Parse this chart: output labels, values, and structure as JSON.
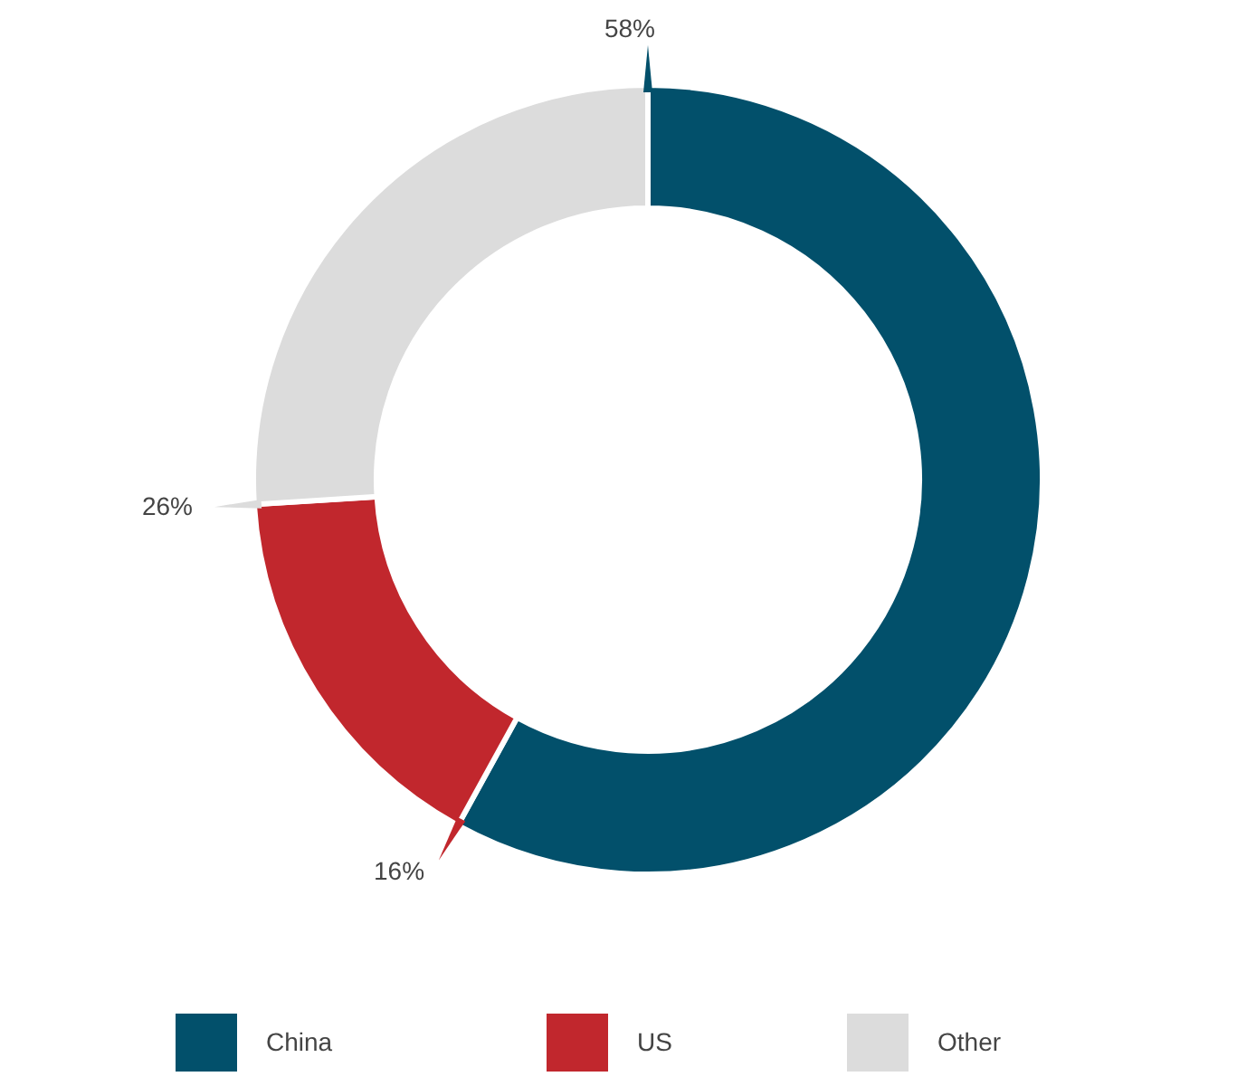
{
  "chart_data": {
    "type": "donut",
    "categories": [
      "China",
      "US",
      "Other"
    ],
    "values": [
      58,
      16,
      26
    ],
    "colors": [
      "#02506b",
      "#c1272d",
      "#dcdcdc"
    ],
    "value_labels": [
      "58%",
      "16%",
      "26%"
    ],
    "legend": "bottom"
  }
}
